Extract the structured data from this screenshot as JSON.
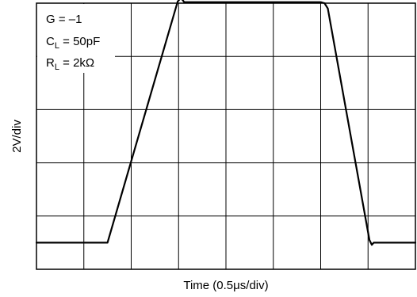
{
  "chart_data": {
    "type": "line",
    "xlabel": "Time (0.5μs/div)",
    "ylabel": "2V/div",
    "x_divisions": 8,
    "y_divisions": 5,
    "xlim": [
      0,
      8
    ],
    "ylim": [
      0,
      5
    ],
    "annotations": [
      {
        "main": "G = –1",
        "sub": "",
        "rest": ""
      },
      {
        "main": "C",
        "sub": "L",
        "rest": " = 50pF"
      },
      {
        "main": "R",
        "sub": "L",
        "rest": " = 2kΩ"
      }
    ],
    "series": [
      {
        "x": [
          0,
          1.5,
          2.98,
          3.05,
          3.12,
          6.0,
          6.08,
          6.15,
          7.03,
          7.08,
          7.12,
          8
        ],
        "y": [
          0.5,
          0.5,
          5.03,
          5.1,
          5.02,
          5.02,
          5.0,
          4.9,
          0.55,
          0.46,
          0.5,
          0.5
        ]
      }
    ]
  }
}
